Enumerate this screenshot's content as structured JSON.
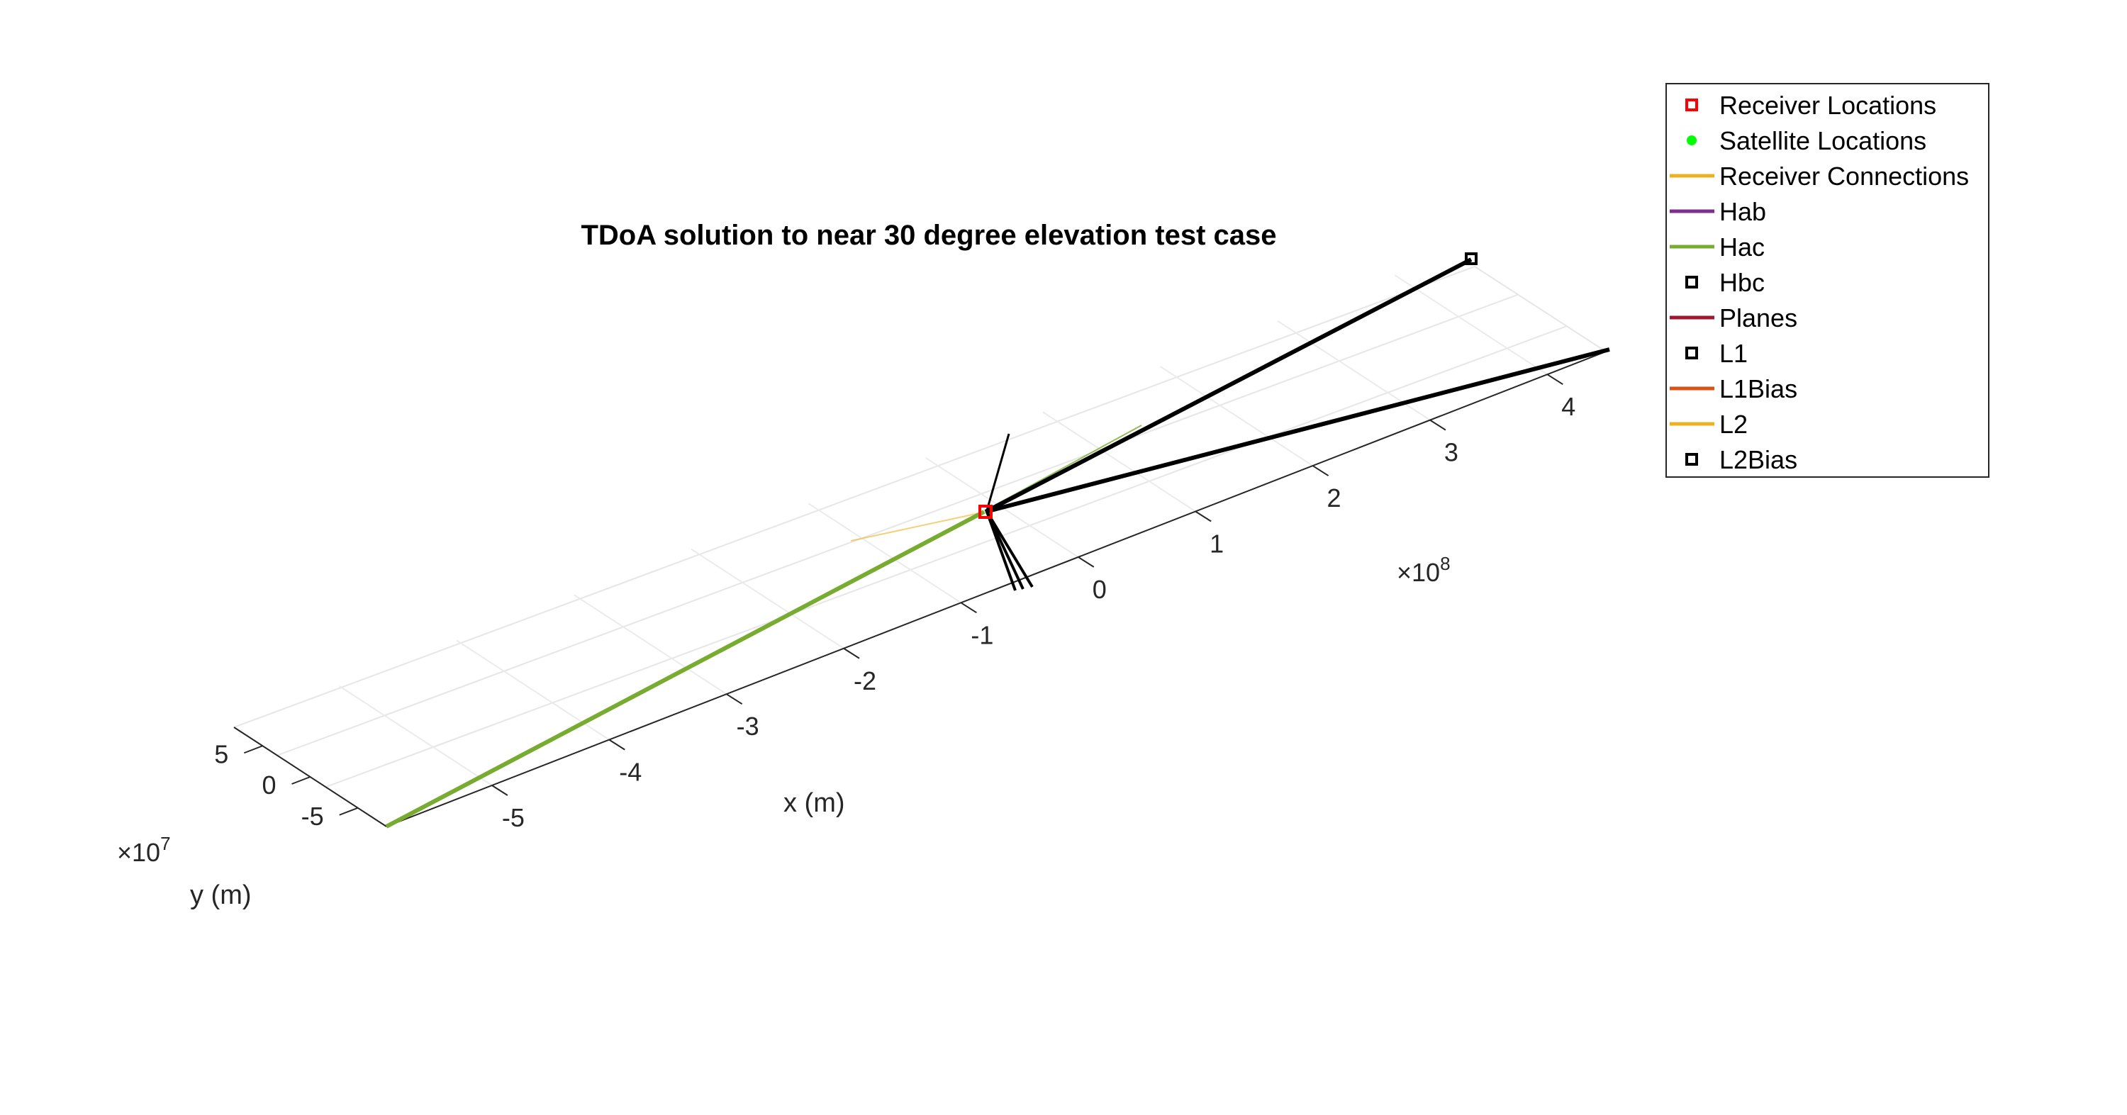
{
  "chart_data": {
    "type": "line",
    "title": "TDoA solution to near 30 degree elevation test case",
    "xlabel": "x (m)",
    "ylabel": "y (m)",
    "x_axis": {
      "ticks": [
        "-5",
        "-4",
        "-3",
        "-2",
        "-1",
        "0",
        "1",
        "2",
        "3",
        "4"
      ],
      "exponent_base": "×10",
      "exponent": "8",
      "range": [
        -5.9,
        4.5
      ]
    },
    "y_axis": {
      "ticks": [
        "5",
        "0",
        "-5"
      ],
      "exponent_base": "×10",
      "exponent": "7",
      "range": [
        -8,
        8
      ]
    },
    "grid": true,
    "legend_position": "top-right",
    "legend": [
      {
        "label": "Receiver Locations",
        "kind": "marker-square",
        "color": "#ff0000"
      },
      {
        "label": "Satellite Locations",
        "kind": "marker-dot",
        "color": "#00ff00"
      },
      {
        "label": "Receiver Connections",
        "kind": "line",
        "color": "#edb120"
      },
      {
        "label": "Hab",
        "kind": "line",
        "color": "#7e2f8e"
      },
      {
        "label": "Hac",
        "kind": "line",
        "color": "#77ac30"
      },
      {
        "label": "Hbc",
        "kind": "marker-square",
        "color": "#000000"
      },
      {
        "label": "Planes",
        "kind": "line",
        "color": "#a2142f"
      },
      {
        "label": "L1",
        "kind": "marker-square",
        "color": "#000000"
      },
      {
        "label": "L1Bias",
        "kind": "line",
        "color": "#d95319"
      },
      {
        "label": "L2",
        "kind": "line",
        "color": "#edb120"
      },
      {
        "label": "L2Bias",
        "kind": "marker-square",
        "color": "#000000"
      }
    ],
    "series": [
      {
        "name": "Hac",
        "color": "#77ac30",
        "x": [
          -5.9,
          0.0
        ]
      },
      {
        "name": "L1",
        "color": "#000000",
        "x": [
          0.0,
          4.4
        ]
      },
      {
        "name": "L2Bias",
        "color": "#000000",
        "x": [
          0.0,
          4.5
        ]
      }
    ]
  }
}
